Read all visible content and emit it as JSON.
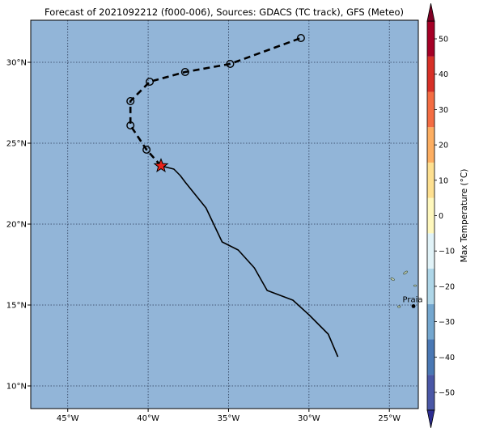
{
  "title": "Forecast of 2021092212 (f000-006), Sources: GDACS (TC track), GFS (Meteo)",
  "map": {
    "lon_range": [
      -47.3,
      -23.2
    ],
    "lat_range": [
      8.6,
      32.6
    ],
    "ocean_color": "#92b5d8",
    "lon_ticks": [
      {
        "value": -45,
        "label": "45°W"
      },
      {
        "value": -40,
        "label": "40°W"
      },
      {
        "value": -35,
        "label": "35°W"
      },
      {
        "value": -30,
        "label": "30°W"
      },
      {
        "value": -25,
        "label": "25°W"
      }
    ],
    "lat_ticks": [
      {
        "value": 10,
        "label": "10°N"
      },
      {
        "value": 15,
        "label": "15°N"
      },
      {
        "value": 20,
        "label": "20°N"
      },
      {
        "value": 25,
        "label": "25°N"
      },
      {
        "value": 30,
        "label": "30°N"
      }
    ],
    "gridlines": true
  },
  "observed_track": [
    [
      -28.2,
      11.8
    ],
    [
      -28.8,
      13.2
    ],
    [
      -30.0,
      14.4
    ],
    [
      -31.0,
      15.3
    ],
    [
      -32.6,
      15.9
    ],
    [
      -33.4,
      17.3
    ],
    [
      -34.4,
      18.4
    ],
    [
      -35.4,
      18.9
    ],
    [
      -36.4,
      21.0
    ],
    [
      -37.7,
      22.6
    ],
    [
      -38.0,
      23.0
    ],
    [
      -38.4,
      23.4
    ],
    [
      -39.2,
      23.6
    ]
  ],
  "current_position": {
    "lon": -39.2,
    "lat": 23.6,
    "color": "#e8221b"
  },
  "forecast_track": [
    [
      -39.2,
      23.6
    ],
    [
      -40.1,
      24.6
    ],
    [
      -41.1,
      26.1
    ],
    [
      -41.1,
      27.6
    ],
    [
      -39.9,
      28.8
    ],
    [
      -37.7,
      29.4
    ],
    [
      -34.9,
      29.9
    ],
    [
      -30.5,
      31.5
    ]
  ],
  "forecast_points": [
    [
      -40.1,
      24.6
    ],
    [
      -41.1,
      26.1
    ],
    [
      -41.1,
      27.6
    ],
    [
      -39.9,
      28.8
    ],
    [
      -37.7,
      29.4
    ],
    [
      -34.9,
      29.9
    ],
    [
      -30.5,
      31.5
    ]
  ],
  "city": {
    "name": "Praia",
    "lon": -23.5,
    "lat": 14.93
  },
  "colorbar": {
    "label": "Max Temperature (°C)",
    "bounds": [
      -55,
      55
    ],
    "levels": [
      -50,
      -40,
      -30,
      -20,
      -10,
      0,
      10,
      20,
      30,
      40,
      50
    ],
    "tick_labels": [
      "−50",
      "−40",
      "−30",
      "−20",
      "−10",
      "0",
      "10",
      "20",
      "30",
      "40",
      "50"
    ],
    "colors": [
      "#4a57a6",
      "#4a78b4",
      "#74a7cf",
      "#aed6e8",
      "#e1f3f8",
      "#fff8bd",
      "#fee090",
      "#fdae61",
      "#f46d43",
      "#d73027",
      "#a50026"
    ],
    "under_color": "#2c2c90",
    "over_color": "#7f0024"
  }
}
